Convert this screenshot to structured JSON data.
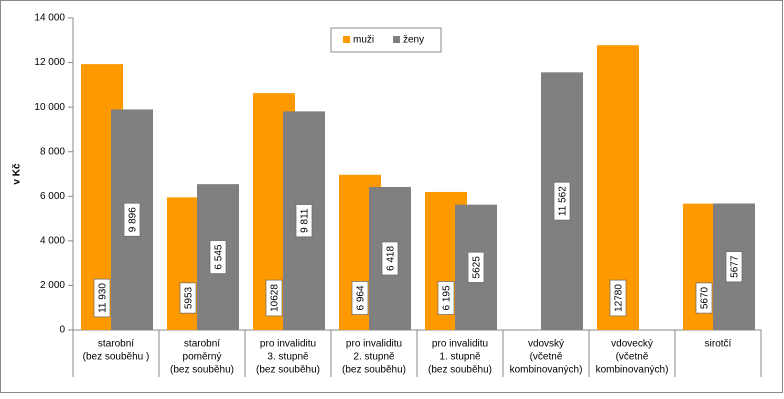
{
  "chart_data": {
    "type": "bar",
    "y_label": "v Kč",
    "categories": [
      [
        "starobní",
        "(bez souběhu )"
      ],
      [
        "starobní",
        "poměrný",
        "(bez souběhu)"
      ],
      [
        "pro invaliditu",
        "3. stupně",
        "(bez souběhu)"
      ],
      [
        "pro invaliditu",
        "2. stupně",
        "(bez souběhu)"
      ],
      [
        "pro invaliditu",
        "1. stupně",
        "(bez souběhu)"
      ],
      [
        "vdovský",
        "(včetně",
        "kombinovaných)"
      ],
      [
        "vdovecký",
        "(včetně",
        "kombinovaných)"
      ],
      [
        "sirotčí"
      ]
    ],
    "series": [
      {
        "name": "muži",
        "color": "#ff9900",
        "values": [
          11930,
          5953,
          10628,
          6964,
          6195,
          null,
          12780,
          5670
        ],
        "value_labels": [
          "11 930",
          "5953",
          "10628",
          "6 964",
          "6 195",
          null,
          "12780",
          "5670"
        ]
      },
      {
        "name": "ženy",
        "color": "#808080",
        "values": [
          9896,
          6545,
          9811,
          6418,
          5625,
          11562,
          null,
          5677
        ],
        "value_labels": [
          "9 896",
          "6 545",
          "9 811",
          "6 418",
          "5625",
          "11 562",
          null,
          "5677"
        ]
      }
    ],
    "ylim": [
      0,
      14000
    ],
    "yticks": [
      0,
      {
        "value": 2000,
        "label": "2 000"
      },
      {
        "value": 4000,
        "label": "4 000"
      },
      {
        "value": 6000,
        "label": "6 000"
      },
      {
        "value": 8000,
        "label": "8 000"
      },
      {
        "value": 10000,
        "label": "10 000"
      },
      {
        "value": 12000,
        "label": "12 000"
      },
      {
        "value": 14000,
        "label": "14 000"
      }
    ],
    "grid": false,
    "legend": "top"
  }
}
